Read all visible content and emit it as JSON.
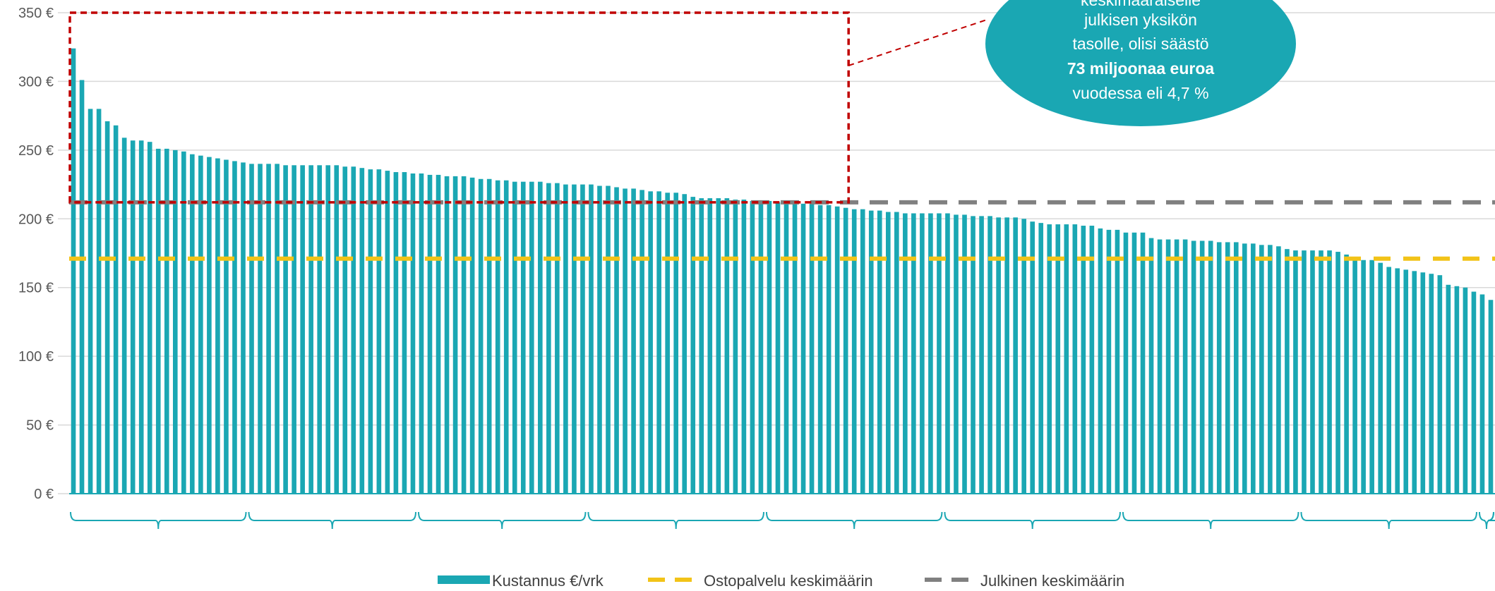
{
  "colors": {
    "bar": "#1AA7B3",
    "purchased_avg": "#F2C318",
    "public_avg": "#808080",
    "highlight": "#C00000",
    "callout": "#1AA7B3",
    "grid": "#D9D9D9"
  },
  "callout": {
    "lines": [
      "keskimääräiselle",
      "julkisen yksikön",
      "tasolle, olisi säästö"
    ],
    "bold_line": "73 miljoonaa euroa",
    "last_line": "vuodessa eli 4,7 %"
  },
  "chart_data": {
    "type": "bar",
    "title": "",
    "xlabel": "",
    "ylabel": "",
    "ylim": [
      0,
      350
    ],
    "y_ticks": [
      0,
      50,
      100,
      150,
      200,
      250,
      300,
      350
    ],
    "y_tick_labels": [
      "0 €",
      "50 €",
      "100 €",
      "150 €",
      "200 €",
      "250 €",
      "300 €",
      "350 €"
    ],
    "grid": true,
    "legend_position": "bottom",
    "series": [
      {
        "name": "Kustannus €/vrk",
        "values": [
          324,
          301,
          280,
          280,
          271,
          268,
          259,
          257,
          257,
          256,
          251,
          251,
          250,
          249,
          247,
          246,
          245,
          244,
          243,
          242,
          241,
          240,
          240,
          240,
          240,
          239,
          239,
          239,
          239,
          239,
          239,
          239,
          238,
          238,
          237,
          236,
          236,
          235,
          234,
          234,
          233,
          233,
          232,
          232,
          231,
          231,
          231,
          230,
          229,
          229,
          228,
          228,
          227,
          227,
          227,
          227,
          226,
          226,
          225,
          225,
          225,
          225,
          224,
          224,
          223,
          222,
          222,
          221,
          220,
          220,
          219,
          219,
          218,
          216,
          215,
          215,
          215,
          215,
          214,
          214,
          213,
          213,
          213,
          212,
          212,
          212,
          211,
          211,
          210,
          210,
          209,
          208,
          207,
          207,
          206,
          206,
          205,
          205,
          204,
          204,
          204,
          204,
          204,
          204,
          203,
          203,
          202,
          202,
          202,
          201,
          201,
          201,
          200,
          198,
          197,
          196,
          196,
          196,
          196,
          195,
          195,
          193,
          192,
          192,
          190,
          190,
          190,
          186,
          185,
          185,
          185,
          185,
          184,
          184,
          184,
          183,
          183,
          183,
          182,
          182,
          181,
          181,
          180,
          178,
          177,
          177,
          177,
          177,
          177,
          176,
          174,
          172,
          170,
          170,
          168,
          165,
          164,
          163,
          162,
          161,
          160,
          159,
          152,
          151,
          150,
          147,
          145,
          141
        ]
      },
      {
        "name": "Ostopalvelu keskimäärin",
        "constant": 171
      },
      {
        "name": "Julkinen keskimäärin",
        "constant": 212
      }
    ],
    "bracket_groups": [
      [
        0,
        20
      ],
      [
        21,
        40
      ],
      [
        41,
        60
      ],
      [
        61,
        81
      ],
      [
        82,
        102
      ],
      [
        103,
        123
      ],
      [
        124,
        144
      ],
      [
        145,
        165
      ],
      [
        166,
        186
      ],
      [
        187,
        200
      ]
    ],
    "highlight": {
      "from_index": 0,
      "to_index": 92,
      "y_from": 212,
      "y_to": 350
    }
  }
}
